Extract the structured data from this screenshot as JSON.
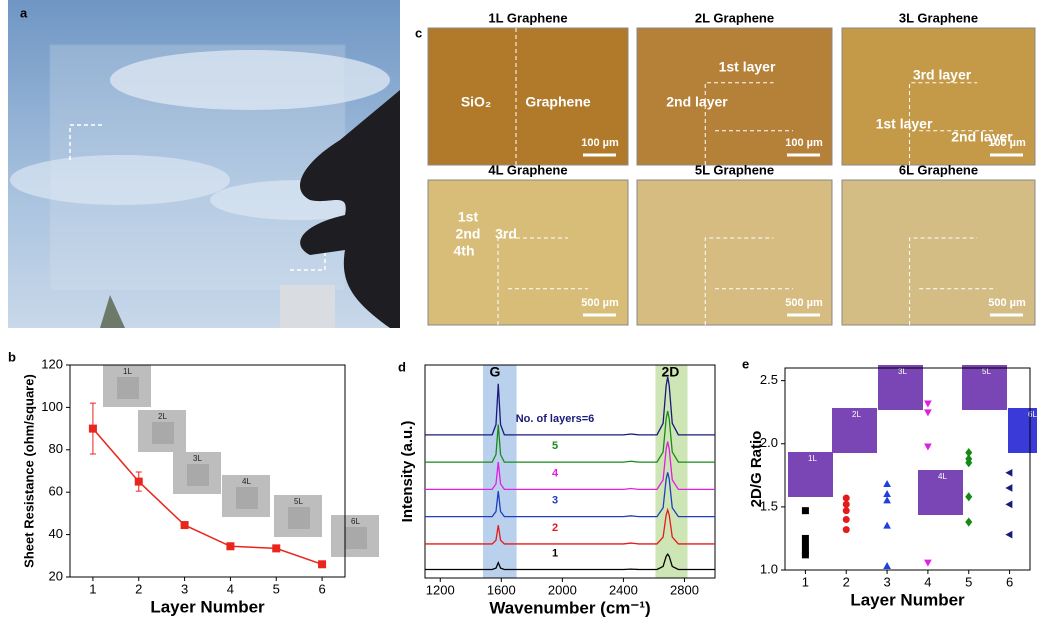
{
  "panel_labels": {
    "a": "a",
    "b": "b",
    "c": "c",
    "d": "d",
    "e": "e"
  },
  "micrographs": [
    {
      "title": "1L Graphene",
      "labels": [
        "SiO₂",
        "Graphene"
      ],
      "scale_bar": "100 µm"
    },
    {
      "title": "2L Graphene",
      "labels": [
        "1st layer",
        "2nd layer"
      ],
      "scale_bar": "100 µm"
    },
    {
      "title": "3L Graphene",
      "labels": [
        "3rd layer",
        "1st layer",
        "2nd layer"
      ],
      "scale_bar": "100 µm"
    },
    {
      "title": "4L Graphene",
      "labels": [
        "1st",
        "2nd",
        "3rd",
        "4th"
      ],
      "scale_bar": "500 µm"
    },
    {
      "title": "5L Graphene",
      "scale_bar": "500 µm"
    },
    {
      "title": "6L Graphene",
      "scale_bar": "500 µm"
    }
  ],
  "chart_data": [
    {
      "type": "line",
      "x": [
        1,
        2,
        3,
        4,
        5,
        6
      ],
      "values": [
        90,
        65,
        44.5,
        34.5,
        33.5,
        26
      ],
      "errors": [
        12,
        4.5,
        1,
        0.5,
        0.5,
        0.5
      ],
      "color": "#e8261c",
      "xlim": [
        0.5,
        6.5
      ],
      "xticks": [
        1,
        2,
        3,
        4,
        5,
        6
      ],
      "ylim": [
        20,
        120
      ],
      "yticks": [
        20,
        40,
        60,
        80,
        100,
        120
      ],
      "xlabel": "Layer Number",
      "ylabel": "Sheet Resistance (ohm/square)",
      "inset_labels": [
        "1L",
        "2L",
        "3L",
        "4L",
        "5L",
        "6L"
      ]
    },
    {
      "type": "line",
      "x": [
        1100,
        1400,
        1540,
        1565,
        1580,
        1595,
        1620,
        1800,
        2400,
        2450,
        2500,
        2620,
        2660,
        2680,
        2690,
        2700,
        2720,
        2760,
        3000
      ],
      "series": [
        {
          "name": "1",
          "color": "#000000",
          "values": [
            0.5,
            0.5,
            0.5,
            0.58,
            0.9,
            0.58,
            0.5,
            0.5,
            0.5,
            0.52,
            0.5,
            0.5,
            0.68,
            1.27,
            1.4,
            1.27,
            0.68,
            0.5,
            0.5
          ]
        },
        {
          "name": "2",
          "color": "#e41a1c",
          "values": [
            2,
            2,
            2,
            2.22,
            3.1,
            2.22,
            2,
            2,
            2,
            2.05,
            2,
            2,
            2.4,
            3.7,
            4,
            3.7,
            2.4,
            2,
            2
          ]
        },
        {
          "name": "3",
          "color": "#1f3fbf",
          "values": [
            3.6,
            3.6,
            3.6,
            3.9,
            5.1,
            3.9,
            3.6,
            3.6,
            3.6,
            3.65,
            3.6,
            3.6,
            4.12,
            5.81,
            6.2,
            5.81,
            4.12,
            3.6,
            3.6
          ]
        },
        {
          "name": "4",
          "color": "#e020e0",
          "values": [
            5.2,
            5.2,
            5.2,
            5.52,
            6.8,
            5.52,
            5.2,
            5.2,
            5.2,
            5.25,
            5.2,
            5.2,
            5.76,
            7.58,
            8,
            7.58,
            5.76,
            5.2,
            5.2
          ]
        },
        {
          "name": "5",
          "color": "#1a8a1a",
          "values": [
            6.8,
            6.8,
            6.8,
            7.24,
            9,
            7.24,
            6.8,
            6.8,
            6.8,
            6.85,
            6.8,
            6.8,
            7.4,
            9.35,
            9.8,
            9.35,
            7.4,
            6.8,
            6.8
          ]
        },
        {
          "name": "No. of layers=6",
          "color": "#1a1a7a",
          "values": [
            8.4,
            8.4,
            8.4,
            9,
            11.4,
            9,
            8.4,
            8.4,
            8.4,
            8.45,
            8.4,
            8.4,
            9.08,
            11.29,
            11.8,
            11.29,
            9.08,
            8.4,
            8.4
          ]
        }
      ],
      "bands": [
        {
          "label": "G",
          "range": [
            1480,
            1700
          ],
          "color": "#9dbde6"
        },
        {
          "label": "2D",
          "range": [
            2610,
            2820
          ],
          "color": "#b9dc95"
        }
      ],
      "xlim": [
        1100,
        3000
      ],
      "xticks": [
        1200,
        1600,
        2000,
        2400,
        2800
      ],
      "ylim": [
        0,
        12.5
      ],
      "xlabel": "Wavenumber (cm⁻¹)",
      "ylabel": "Intensity (a.u.)"
    },
    {
      "type": "scatter",
      "xlim": [
        0.5,
        6.5
      ],
      "xticks": [
        1,
        2,
        3,
        4,
        5,
        6
      ],
      "ylim": [
        1.0,
        2.6
      ],
      "yticks": [
        {
          "value": 1.0,
          "label": "1.0"
        },
        1.5,
        {
          "value": 2.0,
          "label": "2.0"
        },
        2.5
      ],
      "xlabel": "Layer Number",
      "ylabel": "2D/G Ratio",
      "inset_labels": [
        "1L",
        "2L",
        "3L",
        "4L",
        "5L",
        "6L"
      ],
      "series": [
        {
          "color": "#000000",
          "marker": "square",
          "x": [
            1,
            1,
            1,
            1,
            1
          ],
          "values": [
            1.47,
            1.25,
            1.2,
            1.15,
            1.12
          ]
        },
        {
          "color": "#e41a1c",
          "marker": "circle",
          "x": [
            2,
            2,
            2,
            2,
            2
          ],
          "values": [
            1.57,
            1.52,
            1.47,
            1.4,
            1.32
          ]
        },
        {
          "color": "#1f3fdf",
          "marker": "triangle-up",
          "x": [
            3,
            3,
            3,
            3,
            3
          ],
          "values": [
            1.68,
            1.6,
            1.55,
            1.35,
            1.03
          ]
        },
        {
          "color": "#e020e0",
          "marker": "triangle-down",
          "x": [
            4,
            4,
            4,
            4
          ],
          "values": [
            2.32,
            2.25,
            1.98,
            1.06
          ]
        },
        {
          "color": "#138a13",
          "marker": "diamond",
          "x": [
            5,
            5,
            5,
            5,
            5
          ],
          "values": [
            1.93,
            1.88,
            1.85,
            1.58,
            1.38
          ]
        },
        {
          "color": "#1a1a7a",
          "marker": "triangle-left",
          "x": [
            6,
            6,
            6,
            6
          ],
          "values": [
            1.77,
            1.65,
            1.52,
            1.28
          ]
        }
      ]
    }
  ]
}
